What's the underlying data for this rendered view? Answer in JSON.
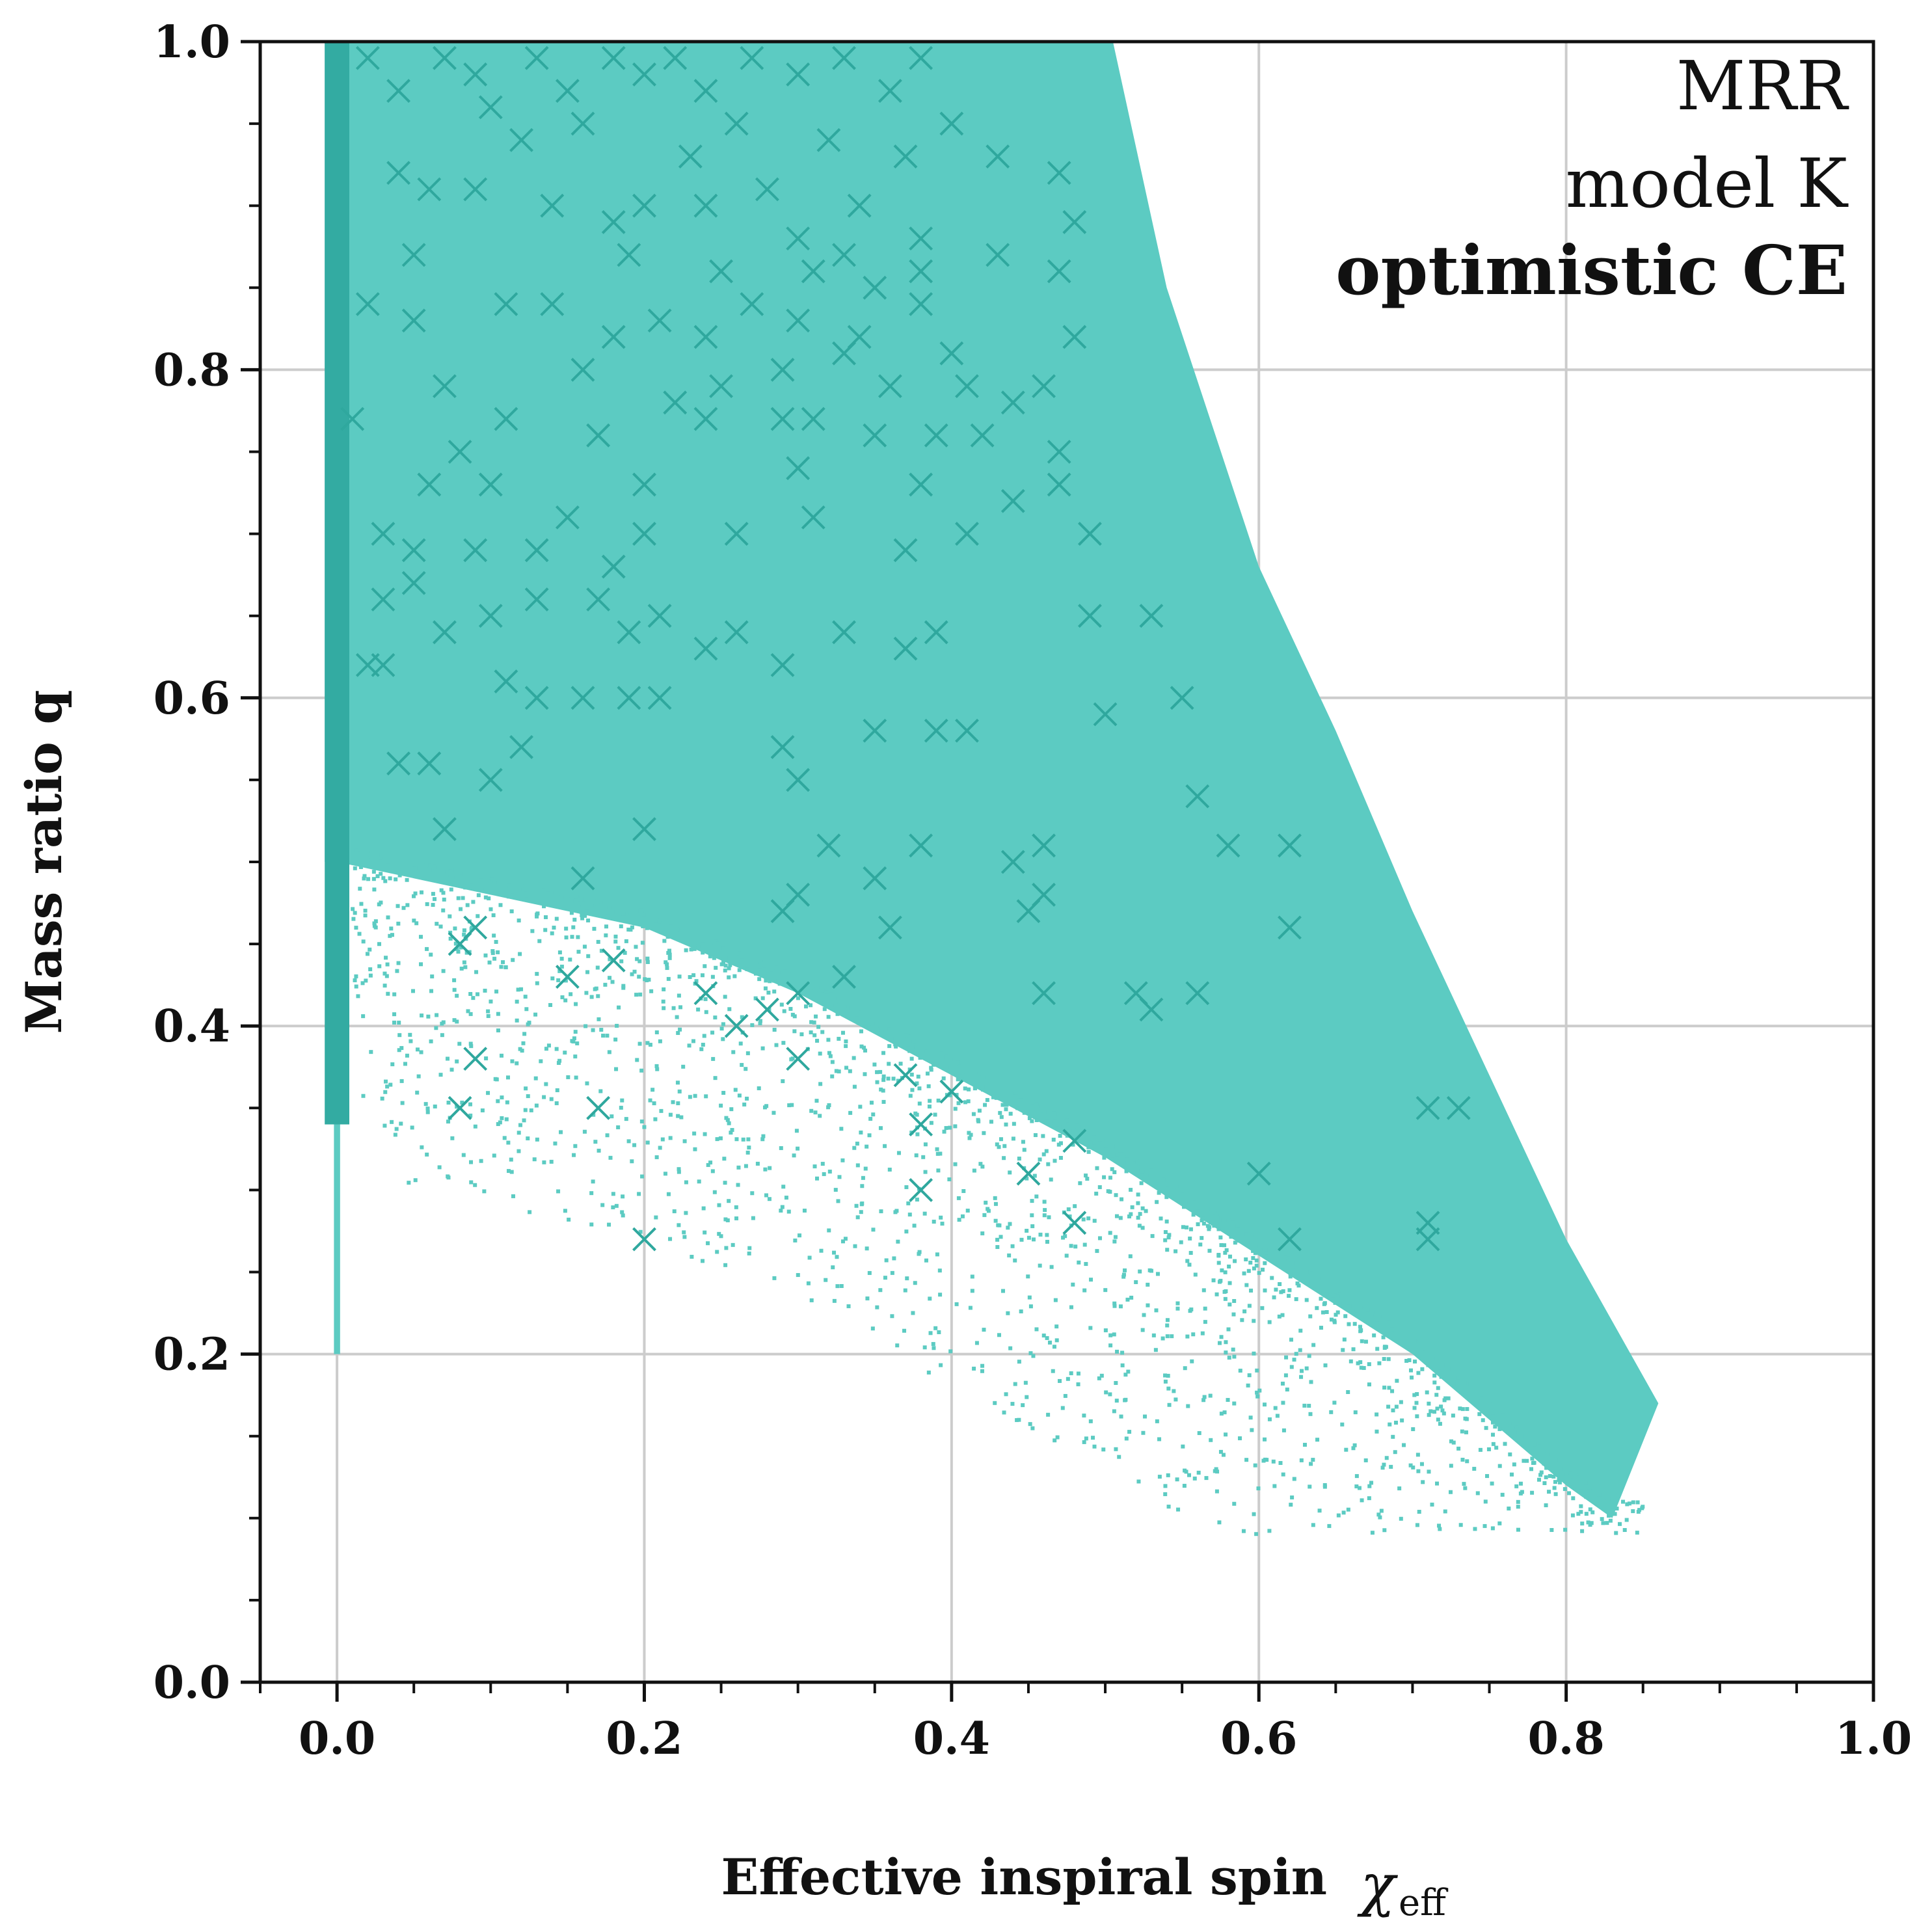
{
  "chart_data": {
    "type": "scatter",
    "title": "",
    "xlabel": "Effective inspiral spin",
    "xlabel_symbol": "χ",
    "xlabel_subscript": "eff",
    "ylabel": "Mass ratio q",
    "xlim": [
      -0.05,
      1.0
    ],
    "ylim": [
      0.0,
      1.0
    ],
    "x_ticks": [
      0.0,
      0.2,
      0.4,
      0.6,
      0.8,
      1.0
    ],
    "x_tick_labels": [
      "0.0",
      "0.2",
      "0.4",
      "0.6",
      "0.8",
      "1.0"
    ],
    "y_ticks": [
      0.0,
      0.2,
      0.4,
      0.6,
      0.8,
      1.0
    ],
    "y_tick_labels": [
      "0.0",
      "0.2",
      "0.4",
      "0.6",
      "0.8",
      "1.0"
    ],
    "grid": true,
    "annotations": [
      "MRR",
      "model K",
      "optimistic CE"
    ],
    "colors": {
      "population": "#5ccbc2",
      "column": "#33aba2",
      "markers": "#2fa89e",
      "grid": "#cccccc",
      "axes": "#111111"
    },
    "population_envelope": {
      "description": "dense population region (approximate boundary)",
      "upper_right_edge": [
        [
          0.505,
          1.0
        ],
        [
          0.54,
          0.85
        ],
        [
          0.6,
          0.68
        ],
        [
          0.65,
          0.58
        ],
        [
          0.7,
          0.47
        ],
        [
          0.75,
          0.37
        ],
        [
          0.8,
          0.27
        ],
        [
          0.86,
          0.17
        ]
      ],
      "lower_edge": [
        [
          0.0,
          0.5
        ],
        [
          0.1,
          0.48
        ],
        [
          0.2,
          0.46
        ],
        [
          0.3,
          0.42
        ],
        [
          0.4,
          0.37
        ],
        [
          0.5,
          0.32
        ],
        [
          0.6,
          0.26
        ],
        [
          0.7,
          0.2
        ],
        [
          0.8,
          0.12
        ],
        [
          0.83,
          0.1
        ]
      ]
    },
    "series": [
      {
        "type": "column",
        "x": [
          -0.008,
          0.008
        ],
        "y": [
          0.34,
          1.0
        ]
      },
      {
        "type": "x-markers",
        "points": [
          [
            0.02,
            0.99
          ],
          [
            0.04,
            0.97
          ],
          [
            0.07,
            0.99
          ],
          [
            0.09,
            0.98
          ],
          [
            0.1,
            0.96
          ],
          [
            0.13,
            0.99
          ],
          [
            0.15,
            0.97
          ],
          [
            0.18,
            0.99
          ],
          [
            0.2,
            0.98
          ],
          [
            0.22,
            0.99
          ],
          [
            0.24,
            0.97
          ],
          [
            0.27,
            0.99
          ],
          [
            0.3,
            0.98
          ],
          [
            0.33,
            0.99
          ],
          [
            0.36,
            0.97
          ],
          [
            0.38,
            0.99
          ],
          [
            0.12,
            0.94
          ],
          [
            0.16,
            0.95
          ],
          [
            0.23,
            0.93
          ],
          [
            0.26,
            0.95
          ],
          [
            0.32,
            0.94
          ],
          [
            0.37,
            0.93
          ],
          [
            0.4,
            0.95
          ],
          [
            0.43,
            0.93
          ],
          [
            0.47,
            0.92
          ],
          [
            0.04,
            0.92
          ],
          [
            0.06,
            0.91
          ],
          [
            0.09,
            0.91
          ],
          [
            0.14,
            0.9
          ],
          [
            0.18,
            0.89
          ],
          [
            0.2,
            0.9
          ],
          [
            0.24,
            0.9
          ],
          [
            0.28,
            0.91
          ],
          [
            0.3,
            0.88
          ],
          [
            0.34,
            0.9
          ],
          [
            0.38,
            0.88
          ],
          [
            0.48,
            0.89
          ],
          [
            0.05,
            0.87
          ],
          [
            0.19,
            0.87
          ],
          [
            0.25,
            0.86
          ],
          [
            0.31,
            0.86
          ],
          [
            0.33,
            0.87
          ],
          [
            0.35,
            0.85
          ],
          [
            0.38,
            0.86
          ],
          [
            0.43,
            0.87
          ],
          [
            0.47,
            0.86
          ],
          [
            0.02,
            0.84
          ],
          [
            0.05,
            0.83
          ],
          [
            0.11,
            0.84
          ],
          [
            0.14,
            0.84
          ],
          [
            0.18,
            0.82
          ],
          [
            0.21,
            0.83
          ],
          [
            0.24,
            0.82
          ],
          [
            0.27,
            0.84
          ],
          [
            0.3,
            0.83
          ],
          [
            0.34,
            0.82
          ],
          [
            0.38,
            0.84
          ],
          [
            0.4,
            0.81
          ],
          [
            0.48,
            0.82
          ],
          [
            0.07,
            0.79
          ],
          [
            0.16,
            0.8
          ],
          [
            0.22,
            0.78
          ],
          [
            0.25,
            0.79
          ],
          [
            0.29,
            0.8
          ],
          [
            0.33,
            0.81
          ],
          [
            0.36,
            0.79
          ],
          [
            0.41,
            0.79
          ],
          [
            0.44,
            0.78
          ],
          [
            0.46,
            0.79
          ],
          [
            0.01,
            0.77
          ],
          [
            0.11,
            0.77
          ],
          [
            0.17,
            0.76
          ],
          [
            0.24,
            0.77
          ],
          [
            0.29,
            0.77
          ],
          [
            0.31,
            0.77
          ],
          [
            0.35,
            0.76
          ],
          [
            0.39,
            0.76
          ],
          [
            0.42,
            0.76
          ],
          [
            0.47,
            0.75
          ],
          [
            0.08,
            0.75
          ],
          [
            0.06,
            0.73
          ],
          [
            0.1,
            0.73
          ],
          [
            0.2,
            0.73
          ],
          [
            0.3,
            0.74
          ],
          [
            0.38,
            0.73
          ],
          [
            0.44,
            0.72
          ],
          [
            0.47,
            0.73
          ],
          [
            0.03,
            0.7
          ],
          [
            0.05,
            0.69
          ],
          [
            0.09,
            0.69
          ],
          [
            0.13,
            0.69
          ],
          [
            0.15,
            0.71
          ],
          [
            0.18,
            0.68
          ],
          [
            0.2,
            0.7
          ],
          [
            0.26,
            0.7
          ],
          [
            0.31,
            0.71
          ],
          [
            0.37,
            0.69
          ],
          [
            0.41,
            0.7
          ],
          [
            0.49,
            0.7
          ],
          [
            0.03,
            0.66
          ],
          [
            0.05,
            0.67
          ],
          [
            0.07,
            0.64
          ],
          [
            0.1,
            0.65
          ],
          [
            0.13,
            0.66
          ],
          [
            0.17,
            0.66
          ],
          [
            0.19,
            0.64
          ],
          [
            0.21,
            0.65
          ],
          [
            0.24,
            0.63
          ],
          [
            0.26,
            0.64
          ],
          [
            0.29,
            0.62
          ],
          [
            0.33,
            0.64
          ],
          [
            0.37,
            0.63
          ],
          [
            0.39,
            0.64
          ],
          [
            0.49,
            0.65
          ],
          [
            0.53,
            0.65
          ],
          [
            0.02,
            0.62
          ],
          [
            0.03,
            0.62
          ],
          [
            0.11,
            0.61
          ],
          [
            0.13,
            0.6
          ],
          [
            0.16,
            0.6
          ],
          [
            0.19,
            0.6
          ],
          [
            0.21,
            0.6
          ],
          [
            0.35,
            0.58
          ],
          [
            0.39,
            0.58
          ],
          [
            0.41,
            0.58
          ],
          [
            0.5,
            0.59
          ],
          [
            0.55,
            0.6
          ],
          [
            0.04,
            0.56
          ],
          [
            0.06,
            0.56
          ],
          [
            0.1,
            0.55
          ],
          [
            0.12,
            0.57
          ],
          [
            0.29,
            0.57
          ],
          [
            0.3,
            0.55
          ],
          [
            0.07,
            0.52
          ],
          [
            0.2,
            0.52
          ],
          [
            0.32,
            0.51
          ],
          [
            0.35,
            0.49
          ],
          [
            0.38,
            0.51
          ],
          [
            0.44,
            0.5
          ],
          [
            0.46,
            0.51
          ],
          [
            0.56,
            0.54
          ],
          [
            0.58,
            0.51
          ],
          [
            0.62,
            0.51
          ],
          [
            0.16,
            0.49
          ],
          [
            0.29,
            0.47
          ],
          [
            0.3,
            0.48
          ],
          [
            0.36,
            0.46
          ],
          [
            0.45,
            0.47
          ],
          [
            0.46,
            0.48
          ],
          [
            0.62,
            0.46
          ],
          [
            0.09,
            0.46
          ],
          [
            0.08,
            0.45
          ],
          [
            0.15,
            0.43
          ],
          [
            0.18,
            0.44
          ],
          [
            0.24,
            0.42
          ],
          [
            0.26,
            0.4
          ],
          [
            0.28,
            0.41
          ],
          [
            0.3,
            0.42
          ],
          [
            0.33,
            0.43
          ],
          [
            0.46,
            0.42
          ],
          [
            0.52,
            0.42
          ],
          [
            0.53,
            0.41
          ],
          [
            0.56,
            0.42
          ],
          [
            0.09,
            0.38
          ],
          [
            0.3,
            0.38
          ],
          [
            0.37,
            0.37
          ],
          [
            0.4,
            0.36
          ],
          [
            0.08,
            0.35
          ],
          [
            0.17,
            0.35
          ],
          [
            0.38,
            0.34
          ],
          [
            0.48,
            0.33
          ],
          [
            0.71,
            0.35
          ],
          [
            0.73,
            0.35
          ],
          [
            0.38,
            0.3
          ],
          [
            0.45,
            0.31
          ],
          [
            0.48,
            0.28
          ],
          [
            0.6,
            0.31
          ],
          [
            0.62,
            0.27
          ],
          [
            0.71,
            0.28
          ],
          [
            0.71,
            0.27
          ],
          [
            0.2,
            0.27
          ]
        ]
      }
    ]
  }
}
